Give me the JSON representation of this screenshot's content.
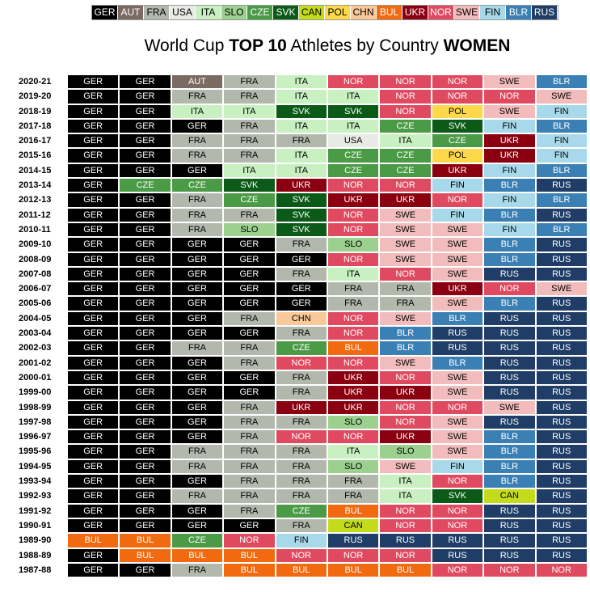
{
  "title": {
    "pre": "World Cup ",
    "b1": "TOP 10",
    "mid": " Athletes by Country ",
    "b2": "WOMEN"
  },
  "colors": {
    "GER": "#000000",
    "AUT": "#7b6a62",
    "FRA": "#b3b8ad",
    "USA": "#e8eae6",
    "ITA": "#c8f0c0",
    "SLO": "#9bd08f",
    "CZE": "#4a9a46",
    "SVK": "#0b5a17",
    "CAN": "#c3db1a",
    "POL": "#fdd84a",
    "CHN": "#f9c99a",
    "BUL": "#f26a10",
    "UKR": "#8b0010",
    "NOR": "#e04a60",
    "SWE": "#f2bcbc",
    "FIN": "#a7d9ea",
    "BLR": "#3a80b4",
    "RUS": "#1f3d66"
  },
  "chart_data": {
    "type": "table",
    "legend": [
      "GER",
      "AUT",
      "FRA",
      "USA",
      "ITA",
      "SLO",
      "CZE",
      "SVK",
      "CAN",
      "POL",
      "CHN",
      "BUL",
      "UKR",
      "NOR",
      "SWE",
      "FIN",
      "BLR",
      "RUS"
    ],
    "rows": [
      {
        "season": "2020-21",
        "top10": [
          "GER",
          "GER",
          "AUT",
          "FRA",
          "ITA",
          "NOR",
          "NOR",
          "NOR",
          "SWE",
          "BLR"
        ]
      },
      {
        "season": "2019-20",
        "top10": [
          "GER",
          "GER",
          "FRA",
          "FRA",
          "ITA",
          "ITA",
          "NOR",
          "NOR",
          "NOR",
          "SWE"
        ]
      },
      {
        "season": "2018-19",
        "top10": [
          "GER",
          "GER",
          "ITA",
          "ITA",
          "SVK",
          "SVK",
          "NOR",
          "POL",
          "SWE",
          "FIN"
        ]
      },
      {
        "season": "2017-18",
        "top10": [
          "GER",
          "GER",
          "GER",
          "FRA",
          "ITA",
          "ITA",
          "CZE",
          "SVK",
          "FIN",
          "BLR"
        ]
      },
      {
        "season": "2016-17",
        "top10": [
          "GER",
          "GER",
          "FRA",
          "FRA",
          "FRA",
          "USA",
          "ITA",
          "CZE",
          "UKR",
          "FIN"
        ]
      },
      {
        "season": "2015-16",
        "top10": [
          "GER",
          "GER",
          "FRA",
          "FRA",
          "ITA",
          "CZE",
          "CZE",
          "POL",
          "UKR",
          "FIN"
        ]
      },
      {
        "season": "2014-15",
        "top10": [
          "GER",
          "GER",
          "GER",
          "ITA",
          "ITA",
          "CZE",
          "CZE",
          "UKR",
          "FIN",
          "BLR"
        ]
      },
      {
        "season": "2013-14",
        "top10": [
          "GER",
          "CZE",
          "CZE",
          "SVK",
          "UKR",
          "NOR",
          "NOR",
          "FIN",
          "BLR",
          "RUS"
        ]
      },
      {
        "season": "2012-13",
        "top10": [
          "GER",
          "GER",
          "FRA",
          "CZE",
          "SVK",
          "UKR",
          "UKR",
          "NOR",
          "FIN",
          "BLR"
        ]
      },
      {
        "season": "2011-12",
        "top10": [
          "GER",
          "GER",
          "FRA",
          "FRA",
          "SVK",
          "NOR",
          "SWE",
          "FIN",
          "BLR",
          "RUS"
        ]
      },
      {
        "season": "2010-11",
        "top10": [
          "GER",
          "GER",
          "FRA",
          "SLO",
          "SVK",
          "NOR",
          "SWE",
          "SWE",
          "FIN",
          "BLR"
        ]
      },
      {
        "season": "2009-10",
        "top10": [
          "GER",
          "GER",
          "GER",
          "GER",
          "FRA",
          "SLO",
          "SWE",
          "SWE",
          "BLR",
          "RUS"
        ]
      },
      {
        "season": "2008-09",
        "top10": [
          "GER",
          "GER",
          "GER",
          "GER",
          "GER",
          "NOR",
          "SWE",
          "SWE",
          "BLR",
          "RUS"
        ]
      },
      {
        "season": "2007-08",
        "top10": [
          "GER",
          "GER",
          "GER",
          "GER",
          "FRA",
          "ITA",
          "NOR",
          "SWE",
          "RUS",
          "RUS"
        ]
      },
      {
        "season": "2006-07",
        "top10": [
          "GER",
          "GER",
          "GER",
          "GER",
          "GER",
          "FRA",
          "FRA",
          "UKR",
          "NOR",
          "SWE"
        ]
      },
      {
        "season": "2005-06",
        "top10": [
          "GER",
          "GER",
          "GER",
          "GER",
          "GER",
          "FRA",
          "FRA",
          "SWE",
          "BLR",
          "RUS"
        ]
      },
      {
        "season": "2004-05",
        "top10": [
          "GER",
          "GER",
          "GER",
          "FRA",
          "CHN",
          "NOR",
          "SWE",
          "BLR",
          "RUS",
          "RUS"
        ]
      },
      {
        "season": "2003-04",
        "top10": [
          "GER",
          "GER",
          "GER",
          "GER",
          "FRA",
          "NOR",
          "BLR",
          "RUS",
          "RUS",
          "RUS"
        ]
      },
      {
        "season": "2002-03",
        "top10": [
          "GER",
          "GER",
          "FRA",
          "FRA",
          "CZE",
          "BUL",
          "BLR",
          "RUS",
          "RUS",
          "RUS"
        ]
      },
      {
        "season": "2001-02",
        "top10": [
          "GER",
          "GER",
          "GER",
          "FRA",
          "NOR",
          "NOR",
          "SWE",
          "BLR",
          "RUS",
          "RUS"
        ]
      },
      {
        "season": "2000-01",
        "top10": [
          "GER",
          "GER",
          "GER",
          "GER",
          "FRA",
          "UKR",
          "NOR",
          "SWE",
          "RUS",
          "RUS"
        ]
      },
      {
        "season": "1999-00",
        "top10": [
          "GER",
          "GER",
          "GER",
          "GER",
          "FRA",
          "UKR",
          "UKR",
          "SWE",
          "RUS",
          "RUS"
        ]
      },
      {
        "season": "1998-99",
        "top10": [
          "GER",
          "GER",
          "GER",
          "FRA",
          "UKR",
          "UKR",
          "NOR",
          "NOR",
          "SWE",
          "RUS"
        ]
      },
      {
        "season": "1997-98",
        "top10": [
          "GER",
          "GER",
          "GER",
          "FRA",
          "FRA",
          "SLO",
          "NOR",
          "SWE",
          "RUS",
          "RUS"
        ]
      },
      {
        "season": "1996-97",
        "top10": [
          "GER",
          "GER",
          "GER",
          "FRA",
          "NOR",
          "NOR",
          "UKR",
          "SWE",
          "BLR",
          "RUS"
        ]
      },
      {
        "season": "1995-96",
        "top10": [
          "GER",
          "GER",
          "FRA",
          "FRA",
          "FRA",
          "ITA",
          "SLO",
          "SWE",
          "BLR",
          "RUS"
        ]
      },
      {
        "season": "1994-95",
        "top10": [
          "GER",
          "GER",
          "FRA",
          "FRA",
          "FRA",
          "SLO",
          "SWE",
          "FIN",
          "BLR",
          "RUS"
        ]
      },
      {
        "season": "1993-94",
        "top10": [
          "GER",
          "GER",
          "GER",
          "FRA",
          "FRA",
          "FRA",
          "ITA",
          "NOR",
          "BLR",
          "RUS"
        ]
      },
      {
        "season": "1992-93",
        "top10": [
          "GER",
          "GER",
          "FRA",
          "FRA",
          "FRA",
          "FRA",
          "ITA",
          "SVK",
          "CAN",
          "RUS"
        ]
      },
      {
        "season": "1991-92",
        "top10": [
          "GER",
          "GER",
          "GER",
          "FRA",
          "CZE",
          "BUL",
          "NOR",
          "NOR",
          "RUS",
          "RUS"
        ]
      },
      {
        "season": "1990-91",
        "top10": [
          "GER",
          "GER",
          "GER",
          "GER",
          "FRA",
          "CAN",
          "NOR",
          "NOR",
          "RUS",
          "RUS"
        ]
      },
      {
        "season": "1989-90",
        "top10": [
          "BUL",
          "BUL",
          "CZE",
          "NOR",
          "FIN",
          "RUS",
          "RUS",
          "RUS",
          "RUS",
          "RUS"
        ]
      },
      {
        "season": "1988-89",
        "top10": [
          "GER",
          "BUL",
          "BUL",
          "BUL",
          "NOR",
          "NOR",
          "NOR",
          "RUS",
          "RUS",
          "RUS"
        ]
      },
      {
        "season": "1987-88",
        "top10": [
          "GER",
          "GER",
          "FRA",
          "BUL",
          "BUL",
          "BUL",
          "BUL",
          "NOR",
          "NOR",
          "NOR"
        ]
      }
    ]
  }
}
